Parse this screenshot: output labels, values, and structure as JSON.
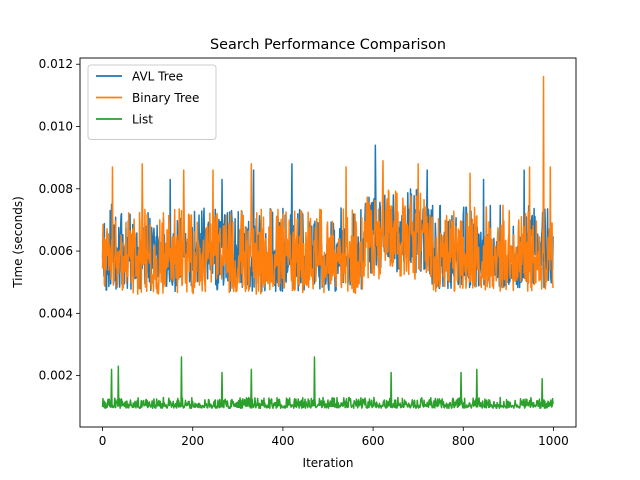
{
  "chart_data": {
    "type": "line",
    "title": "Search Performance Comparison",
    "xlabel": "Iteration",
    "ylabel": "Time (seconds)",
    "xlim": [
      -50,
      1050
    ],
    "ylim": [
      0.00035,
      0.0122
    ],
    "x_ticks": [
      0,
      200,
      400,
      600,
      800,
      1000
    ],
    "x_tick_labels": [
      "0",
      "200",
      "400",
      "600",
      "800",
      "1000"
    ],
    "y_ticks": [
      0.002,
      0.004,
      0.006,
      0.008,
      0.01,
      0.012
    ],
    "y_tick_labels": [
      "0.002",
      "0.004",
      "0.006",
      "0.008",
      "0.010",
      "0.012"
    ],
    "grid": false,
    "legend_position": "top-left",
    "x_range": [
      0,
      999
    ],
    "series": [
      {
        "name": "AVL Tree",
        "color": "#1f77b4",
        "segments": [
          {
            "from": 0,
            "to": 580,
            "baseline": 0.0058,
            "low": 0.0047,
            "high": 0.0074
          },
          {
            "from": 580,
            "to": 720,
            "baseline": 0.0066,
            "low": 0.0053,
            "high": 0.008
          },
          {
            "from": 720,
            "to": 1000,
            "baseline": 0.0058,
            "low": 0.0048,
            "high": 0.0075
          }
        ],
        "peaks": [
          [
            20,
            0.0075
          ],
          [
            150,
            0.0083
          ],
          [
            265,
            0.0083
          ],
          [
            335,
            0.0086
          ],
          [
            420,
            0.0088
          ],
          [
            605,
            0.0094
          ],
          [
            720,
            0.0086
          ],
          [
            845,
            0.0083
          ],
          [
            935,
            0.0086
          ],
          [
            978,
            0.0092
          ]
        ]
      },
      {
        "name": "Binary Tree",
        "color": "#ff7f0e",
        "segments": [
          {
            "from": 0,
            "to": 580,
            "baseline": 0.0058,
            "low": 0.0046,
            "high": 0.0074
          },
          {
            "from": 580,
            "to": 720,
            "baseline": 0.0066,
            "low": 0.0051,
            "high": 0.008
          },
          {
            "from": 720,
            "to": 1000,
            "baseline": 0.0058,
            "low": 0.0047,
            "high": 0.0075
          }
        ],
        "peaks": [
          [
            22,
            0.0087
          ],
          [
            88,
            0.0088
          ],
          [
            180,
            0.0086
          ],
          [
            245,
            0.0086
          ],
          [
            330,
            0.0088
          ],
          [
            540,
            0.0087
          ],
          [
            622,
            0.0089
          ],
          [
            700,
            0.0088
          ],
          [
            815,
            0.0085
          ],
          [
            947,
            0.0087
          ],
          [
            978,
            0.0116
          ],
          [
            993,
            0.0087
          ]
        ]
      },
      {
        "name": "List",
        "color": "#2ca02c",
        "segments": [
          {
            "from": 0,
            "to": 1000,
            "baseline": 0.00105,
            "low": 0.00095,
            "high": 0.0013
          }
        ],
        "peaks": [
          [
            20,
            0.0022
          ],
          [
            35,
            0.0023
          ],
          [
            175,
            0.0026
          ],
          [
            265,
            0.0021
          ],
          [
            330,
            0.0022
          ],
          [
            470,
            0.0026
          ],
          [
            640,
            0.0021
          ],
          [
            795,
            0.0021
          ],
          [
            830,
            0.0022
          ],
          [
            975,
            0.0019
          ]
        ]
      }
    ]
  }
}
